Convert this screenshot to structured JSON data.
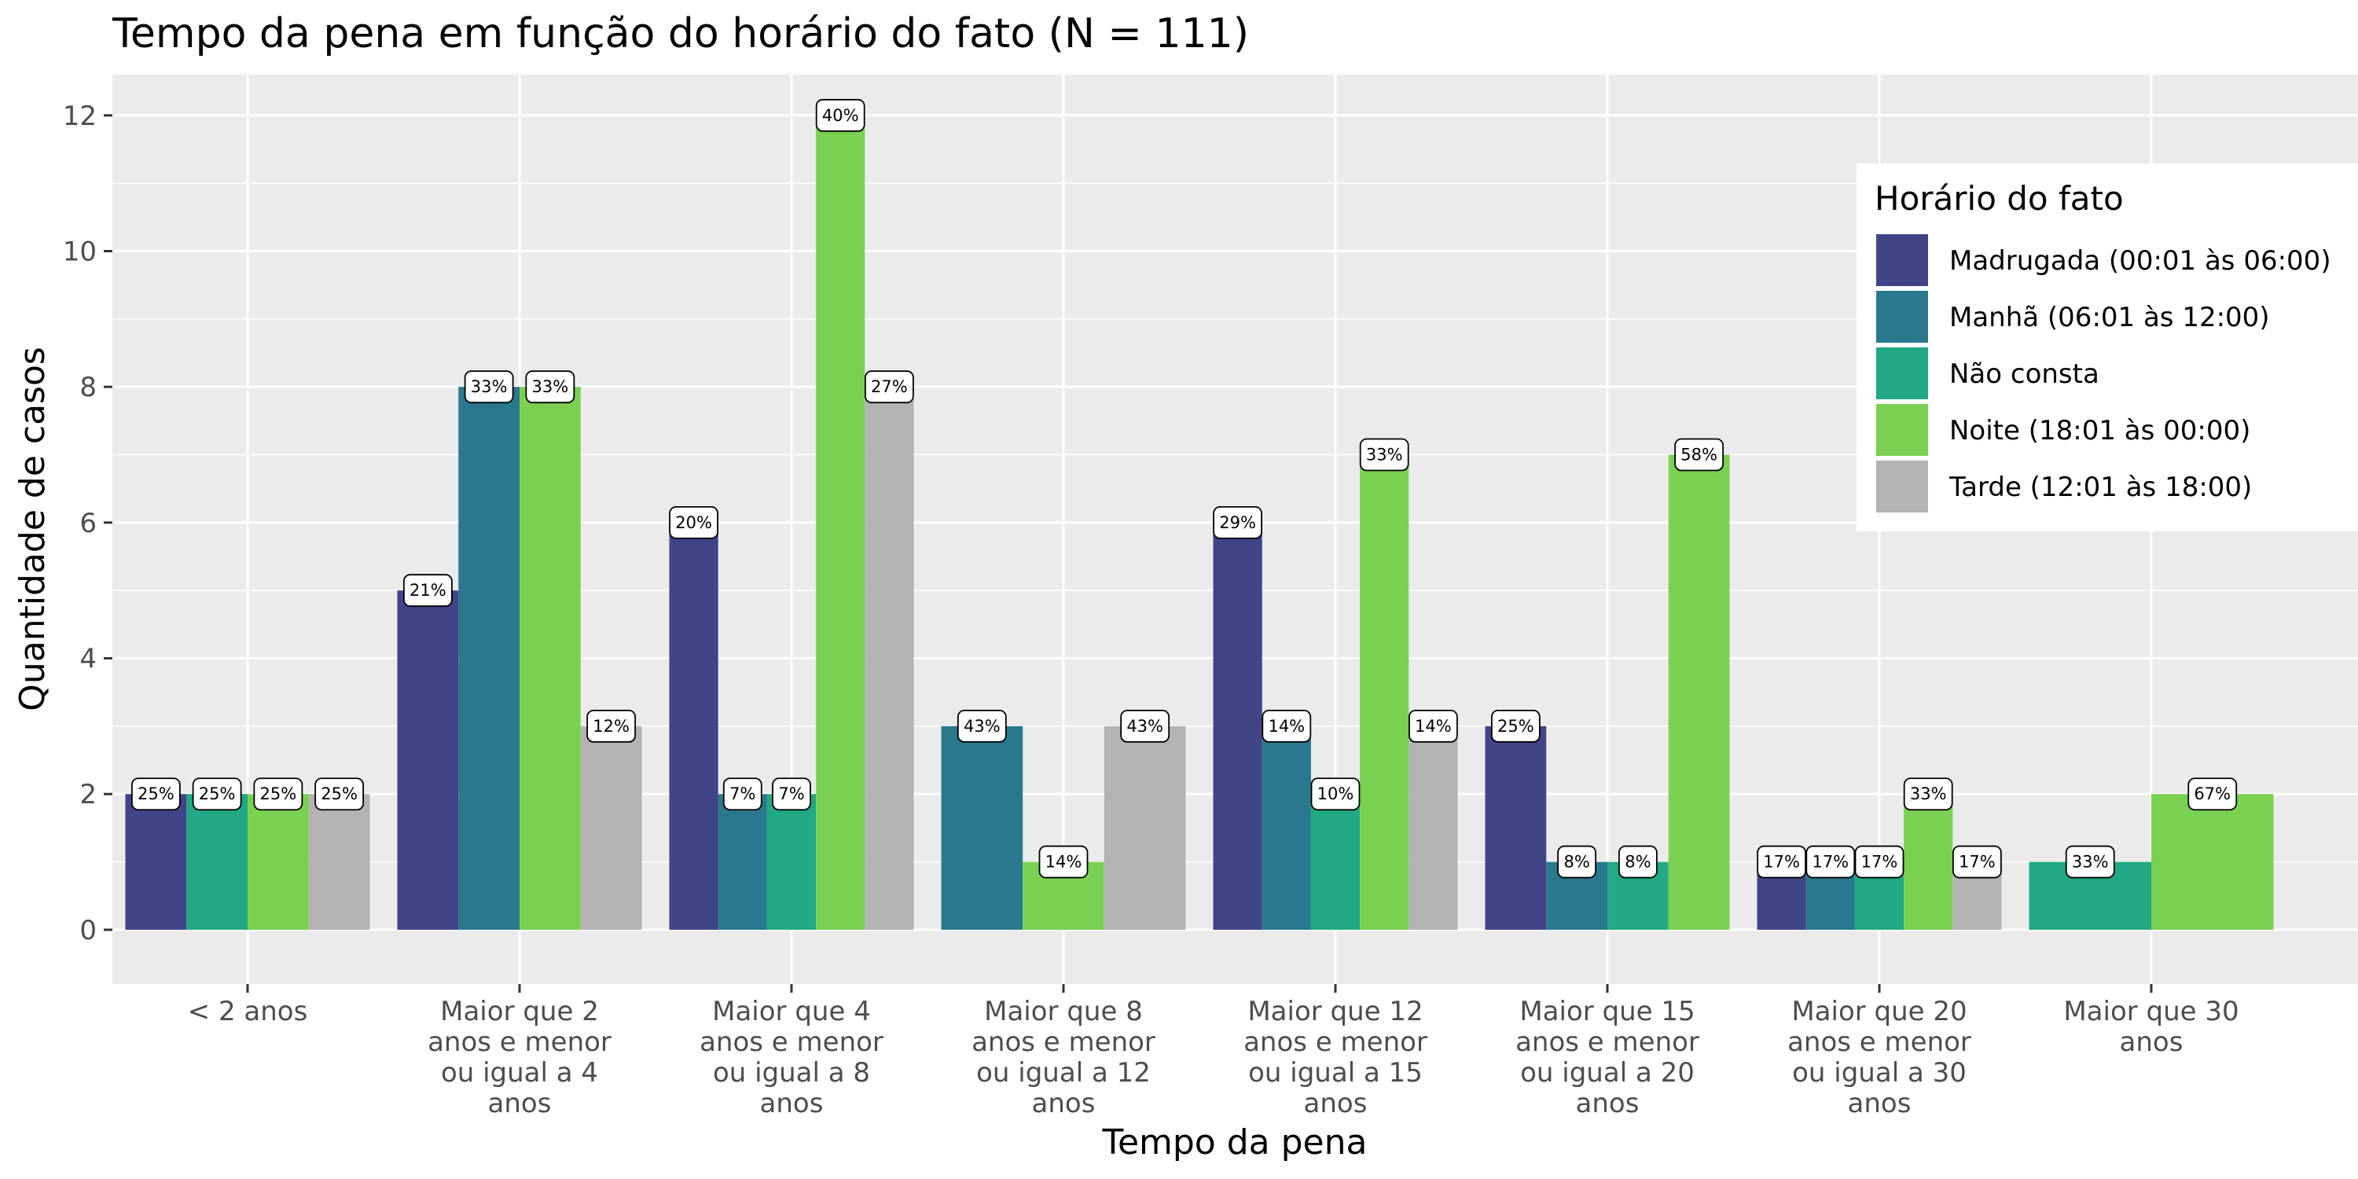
{
  "chart_data": {
    "type": "bar",
    "title": "Tempo da pena em função do horário do fato (N = 111)",
    "xlabel": "Tempo da pena",
    "ylabel": "Quantidade de casos",
    "ylim": [
      -0.8,
      12.6
    ],
    "yticks": [
      0,
      2,
      4,
      6,
      8,
      10,
      12
    ],
    "grid": true,
    "legend_position": "top-right",
    "legend_title": "Horário do fato",
    "categories": [
      [
        "< 2 anos"
      ],
      [
        "Maior que 2",
        "anos e menor",
        "ou igual a 4",
        "anos"
      ],
      [
        "Maior que 4",
        "anos e menor",
        "ou igual a 8",
        "anos"
      ],
      [
        "Maior que 8",
        "anos e menor",
        "ou igual a 12",
        "anos"
      ],
      [
        "Maior que 12",
        "anos e menor",
        "ou igual a 15",
        "anos"
      ],
      [
        "Maior que 15",
        "anos e menor",
        "ou igual a 20",
        "anos"
      ],
      [
        "Maior que 20",
        "anos e menor",
        "ou igual a 30",
        "anos"
      ],
      [
        "Maior que 30",
        "anos"
      ]
    ],
    "series": [
      {
        "name": "Madrugada (00:01 às 06:00)",
        "color": "#414487"
      },
      {
        "name": "Manhã (06:01 às 12:00)",
        "color": "#2A788E"
      },
      {
        "name": "Não consta",
        "color": "#22A884"
      },
      {
        "name": "Noite (18:01 às 00:00)",
        "color": "#7AD151"
      },
      {
        "name": "Tarde (12:01 às 18:00)",
        "color": "#B3B3B3"
      }
    ],
    "groups": [
      [
        {
          "s": 0,
          "v": 2,
          "label": "25%"
        },
        {
          "s": 2,
          "v": 2,
          "label": "25%"
        },
        {
          "s": 3,
          "v": 2,
          "label": "25%"
        },
        {
          "s": 4,
          "v": 2,
          "label": "25%"
        }
      ],
      [
        {
          "s": 0,
          "v": 5,
          "label": "21%"
        },
        {
          "s": 1,
          "v": 8,
          "label": "33%"
        },
        {
          "s": 3,
          "v": 8,
          "label": "33%"
        },
        {
          "s": 4,
          "v": 3,
          "label": "12%"
        }
      ],
      [
        {
          "s": 0,
          "v": 6,
          "label": "20%"
        },
        {
          "s": 1,
          "v": 2,
          "label": "7%"
        },
        {
          "s": 2,
          "v": 2,
          "label": "7%"
        },
        {
          "s": 3,
          "v": 12,
          "label": "40%"
        },
        {
          "s": 4,
          "v": 8,
          "label": "27%"
        }
      ],
      [
        {
          "s": 1,
          "v": 3,
          "label": "43%"
        },
        {
          "s": 3,
          "v": 1,
          "label": "14%"
        },
        {
          "s": 4,
          "v": 3,
          "label": "43%"
        }
      ],
      [
        {
          "s": 0,
          "v": 6,
          "label": "29%"
        },
        {
          "s": 1,
          "v": 3,
          "label": "14%"
        },
        {
          "s": 2,
          "v": 2,
          "label": "10%"
        },
        {
          "s": 3,
          "v": 7,
          "label": "33%"
        },
        {
          "s": 4,
          "v": 3,
          "label": "14%"
        }
      ],
      [
        {
          "s": 0,
          "v": 3,
          "label": "25%"
        },
        {
          "s": 1,
          "v": 1,
          "label": "8%"
        },
        {
          "s": 2,
          "v": 1,
          "label": "8%"
        },
        {
          "s": 3,
          "v": 7,
          "label": "58%"
        }
      ],
      [
        {
          "s": 0,
          "v": 1,
          "label": "17%"
        },
        {
          "s": 1,
          "v": 1,
          "label": "17%"
        },
        {
          "s": 2,
          "v": 1,
          "label": "17%"
        },
        {
          "s": 3,
          "v": 2,
          "label": "33%"
        },
        {
          "s": 4,
          "v": 1,
          "label": "17%"
        }
      ],
      [
        {
          "s": 2,
          "v": 1,
          "label": "33%"
        },
        {
          "s": 3,
          "v": 2,
          "label": "67%"
        }
      ]
    ]
  }
}
